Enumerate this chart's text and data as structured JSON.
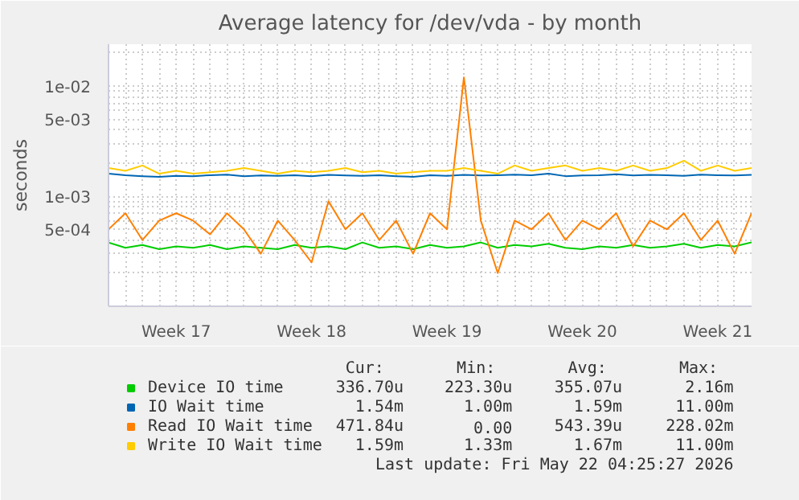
{
  "chart_data": {
    "type": "line",
    "title": "Average latency for /dev/vda - by month",
    "ylabel": "seconds",
    "log": "y",
    "grid": true,
    "legend": "bottom",
    "marker": "none",
    "line_style": "solid",
    "ylim": [
      0.0001,
      0.024
    ],
    "categories": [
      null,
      null,
      null,
      null,
      "Week 17",
      null,
      null,
      null,
      null,
      null,
      null,
      null,
      "Week 18",
      null,
      null,
      null,
      null,
      null,
      null,
      null,
      "Week 19",
      null,
      null,
      null,
      null,
      null,
      null,
      null,
      "Week 20",
      null,
      null,
      null,
      null,
      null,
      null,
      null,
      "Week 21",
      null,
      null
    ],
    "yticks": [
      {
        "value": 0.0002,
        "label": null
      },
      {
        "value": 0.0003,
        "label": null
      },
      {
        "value": 0.0004,
        "label": null
      },
      {
        "value": 0.0005,
        "label": "5e-04"
      },
      {
        "value": 0.0006,
        "label": null
      },
      {
        "value": 0.0007,
        "label": null
      },
      {
        "value": 0.0008,
        "label": null
      },
      {
        "value": 0.0009,
        "label": null
      },
      {
        "value": 0.001,
        "label": "1e-03"
      },
      {
        "value": 0.002,
        "label": null
      },
      {
        "value": 0.003,
        "label": null
      },
      {
        "value": 0.004,
        "label": null
      },
      {
        "value": 0.005,
        "label": "5e-03"
      },
      {
        "value": 0.006,
        "label": null
      },
      {
        "value": 0.007,
        "label": null
      },
      {
        "value": 0.008,
        "label": null
      },
      {
        "value": 0.009,
        "label": null
      },
      {
        "value": 0.01,
        "label": "1e-02"
      },
      {
        "value": 0.02,
        "label": null
      }
    ],
    "series": [
      {
        "name": "Device IO time",
        "color": "#00cc00",
        "values": [
          0.00038,
          0.00034,
          0.00036,
          0.00033,
          0.00035,
          0.00034,
          0.00036,
          0.00033,
          0.00035,
          0.00034,
          0.00033,
          0.00036,
          0.00034,
          0.00035,
          0.00033,
          0.00038,
          0.00034,
          0.00035,
          0.00033,
          0.00036,
          0.00034,
          0.00035,
          0.00038,
          0.00034,
          0.00036,
          0.00035,
          0.00037,
          0.00034,
          0.00033,
          0.00035,
          0.00034,
          0.00036,
          0.00034,
          0.00035,
          0.00037,
          0.00034,
          0.00036,
          0.00035,
          0.00038
        ]
      },
      {
        "name": "IO Wait time",
        "color": "#0066b3",
        "values": [
          0.0016,
          0.00155,
          0.00152,
          0.0015,
          0.00153,
          0.00152,
          0.00155,
          0.00157,
          0.00152,
          0.00154,
          0.00153,
          0.00155,
          0.00152,
          0.00156,
          0.00154,
          0.00153,
          0.00155,
          0.00152,
          0.0015,
          0.00155,
          0.00153,
          0.00156,
          0.00154,
          0.00155,
          0.00157,
          0.00155,
          0.0016,
          0.00152,
          0.00154,
          0.00155,
          0.00158,
          0.00154,
          0.00156,
          0.00155,
          0.00153,
          0.00157,
          0.00155,
          0.00154,
          0.00156
        ]
      },
      {
        "name": "Read IO Wait time",
        "color": "#ff8000",
        "values": [
          0.0005,
          0.0007,
          0.0004,
          0.0006,
          0.0007,
          0.0006,
          0.00045,
          0.0007,
          0.0005,
          0.0003,
          0.0006,
          0.0004,
          0.00025,
          0.0009,
          0.0005,
          0.0007,
          0.0004,
          0.0006,
          0.0003,
          0.0007,
          0.0005,
          0.012,
          0.0006,
          0.0002,
          0.0006,
          0.0005,
          0.0007,
          0.0004,
          0.0006,
          0.0005,
          0.0007,
          0.00035,
          0.0006,
          0.0005,
          0.0007,
          0.0004,
          0.0006,
          0.0003,
          0.0007
        ]
      },
      {
        "name": "Write IO Wait time",
        "color": "#ffcc00",
        "values": [
          0.0018,
          0.0017,
          0.0019,
          0.0016,
          0.0017,
          0.0016,
          0.00165,
          0.0017,
          0.0018,
          0.0017,
          0.0016,
          0.0017,
          0.00165,
          0.0017,
          0.0018,
          0.00165,
          0.0017,
          0.0016,
          0.00165,
          0.0017,
          0.0017,
          0.0018,
          0.0017,
          0.0016,
          0.0019,
          0.0017,
          0.0018,
          0.0019,
          0.0017,
          0.0018,
          0.0017,
          0.0019,
          0.0017,
          0.0018,
          0.0021,
          0.0017,
          0.0019,
          0.0017,
          0.0018
        ]
      }
    ],
    "annotations": [
      "Cur:",
      "Min:",
      "Avg:",
      "Max:",
      "336.70u",
      "223.30u",
      "355.07u",
      "2.16m",
      "1.54m",
      "1.00m",
      "1.59m",
      "11.00m",
      "471.84u",
      "0.00",
      "543.39u",
      "228.02m",
      "1.59m",
      "1.33m",
      "1.67m",
      "11.00m",
      "Last update: Fri May 22 04:25:27 2026"
    ]
  }
}
